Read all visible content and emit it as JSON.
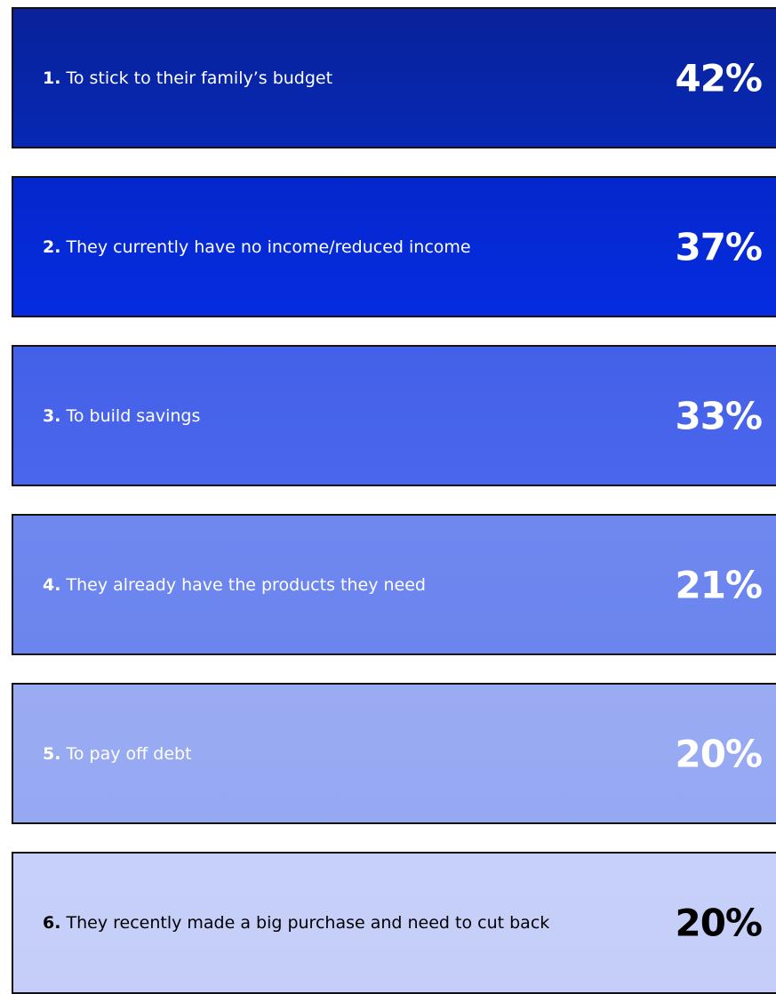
{
  "items": [
    {
      "rank": "1.",
      "text": "To stick to their family’s budget",
      "value": "42%"
    },
    {
      "rank": "2.",
      "text": "They currently have no income/reduced income",
      "value": "37%"
    },
    {
      "rank": "3.",
      "text": "To build savings",
      "value": "33%"
    },
    {
      "rank": "4.",
      "text": "They already have the products they need",
      "value": "21%"
    },
    {
      "rank": "5.",
      "text": "To pay off debt",
      "value": "20%"
    },
    {
      "rank": "6.",
      "text": "They recently made a big purchase and need to cut back",
      "value": "20%"
    }
  ]
}
